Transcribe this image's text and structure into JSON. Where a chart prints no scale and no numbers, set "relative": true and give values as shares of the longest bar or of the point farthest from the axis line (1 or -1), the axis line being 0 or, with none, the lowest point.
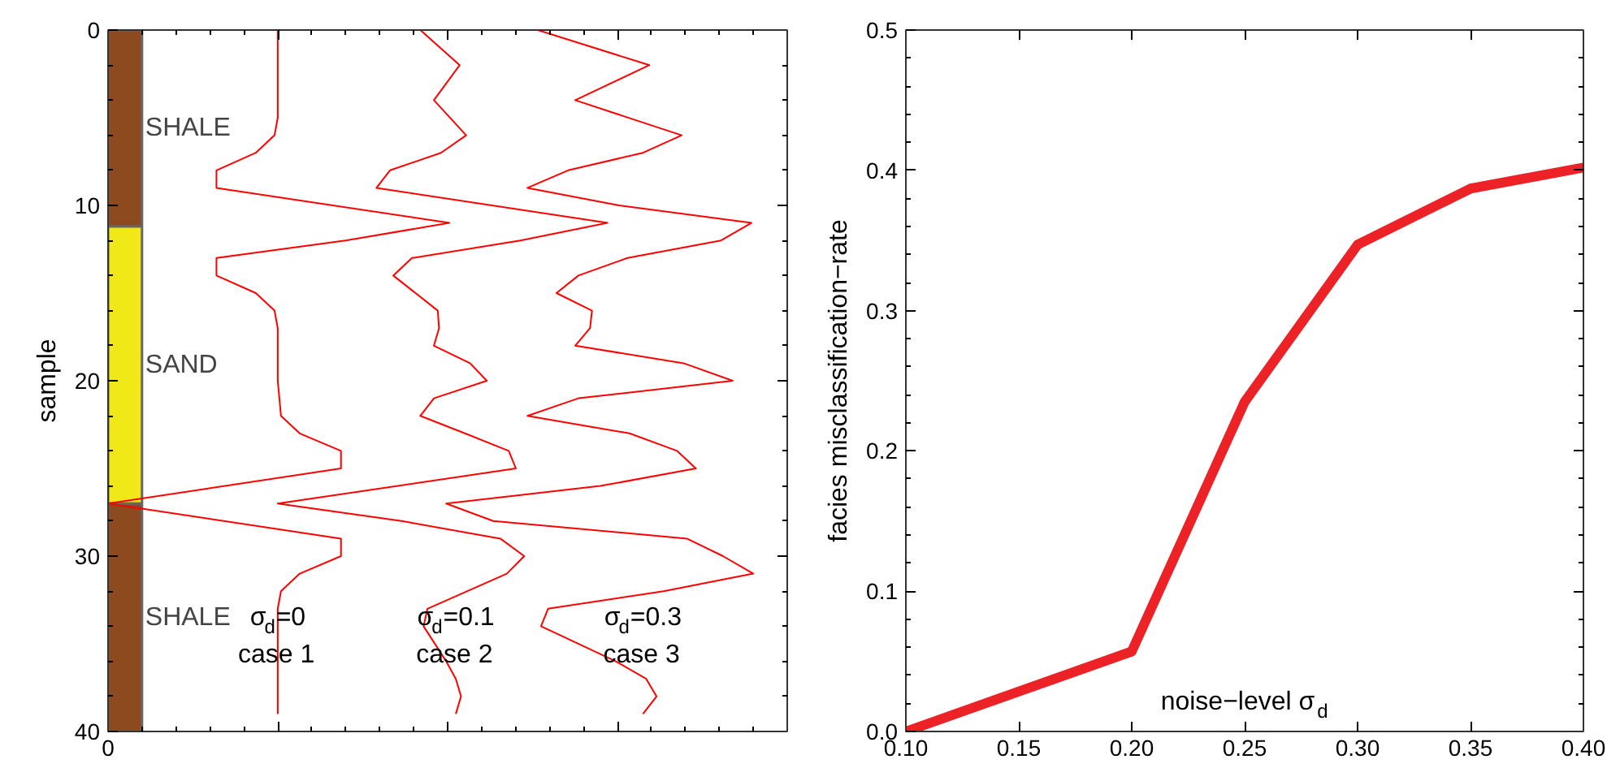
{
  "chart_data": [
    {
      "type": "line",
      "relative": true,
      "orientation": "horizontal",
      "ylabel": "sample",
      "ylim": [
        40,
        0
      ],
      "yticks": [
        0,
        10,
        20,
        30,
        40
      ],
      "grid": false,
      "bands": [
        {
          "axis": "y",
          "from": 0,
          "to": 11.2,
          "label": "SHALE",
          "color": "#8e4a1f"
        },
        {
          "axis": "y",
          "from": 11.2,
          "to": 27,
          "label": "SAND",
          "color": "#f0e817"
        },
        {
          "axis": "y",
          "from": 27,
          "to": 40,
          "label": "SHALE",
          "color": "#8e4a1f"
        }
      ],
      "series": [
        {
          "color": "#ff0000",
          "values": [
            0.263,
            0.263,
            0.258,
            0.229,
            0.168,
            0.168,
            0.529,
            0.368,
            0.168,
            0.168,
            0.229,
            0.258,
            0.263,
            0.263,
            0.268,
            0.297,
            0.361,
            0.361,
            0,
            0.361,
            0.361,
            0.297,
            0.268,
            0.263,
            0.263
          ],
          "x": [
            0,
            5,
            6,
            7,
            8,
            9,
            11,
            12,
            13,
            14,
            15,
            16,
            17,
            20,
            22,
            23,
            24,
            25,
            27,
            29,
            30,
            31,
            32,
            33,
            39
          ]
        },
        {
          "color": "#ff0000",
          "values": [
            0.484,
            0.545,
            0.505,
            0.555,
            0.516,
            0.437,
            0.416,
            0.774,
            0.639,
            0.471,
            0.442,
            0.511,
            0.513,
            0.505,
            0.561,
            0.587,
            0.505,
            0.484,
            0.553,
            0.621,
            0.632,
            0.263,
            0.455,
            0.608,
            0.645,
            0.618,
            0.495,
            0.489,
            0.524,
            0.539,
            0.547,
            0.539
          ],
          "x": [
            0,
            2,
            4,
            6,
            7,
            8,
            9,
            11,
            12,
            13,
            14,
            16,
            17,
            18,
            19,
            20,
            21,
            22,
            23,
            24,
            25,
            27,
            28,
            29,
            30,
            31,
            33,
            34,
            36,
            37,
            38,
            39
          ]
        },
        {
          "color": "#ff0000",
          "values": [
            0.666,
            0.839,
            0.724,
            0.889,
            0.829,
            0.713,
            0.65,
            0.792,
            0.997,
            0.95,
            0.805,
            0.729,
            0.695,
            0.75,
            0.747,
            0.724,
            0.892,
            0.968,
            0.729,
            0.65,
            0.808,
            0.882,
            0.911,
            0.763,
            0.524,
            0.597,
            0.897,
            0.953,
            1.0,
            0.861,
            0.682,
            0.671,
            0.787,
            0.834,
            0.85,
            0.829
          ],
          "x": [
            0,
            2,
            4,
            6,
            7,
            8,
            9,
            10,
            11,
            12,
            13,
            14,
            15,
            16,
            17,
            18,
            19,
            20,
            21,
            22,
            23,
            24,
            25,
            26,
            27,
            28,
            29,
            30,
            31,
            32,
            33,
            34,
            36,
            37,
            38,
            39
          ]
        }
      ],
      "annotations": [
        "0",
        "σ$_{d}$=0\ncase 1",
        "σ$_{d}$=0.1\ncase 2",
        "σ$_{d}$=0.3\ncase 3"
      ]
    },
    {
      "type": "line",
      "xlabel": "noise−level σ$_{d}$",
      "ylabel": "facies misclassification−rate",
      "xlim": [
        0.1,
        0.4
      ],
      "xticks": [
        {
          "value": 0.1,
          "label": "0.10"
        },
        {
          "value": 0.15,
          "label": "0.15"
        },
        {
          "value": 0.2,
          "label": "0.20"
        },
        {
          "value": 0.25,
          "label": "0.25"
        },
        {
          "value": 0.3,
          "label": "0.30"
        },
        {
          "value": 0.35,
          "label": "0.35"
        },
        {
          "value": 0.4,
          "label": "0.40"
        }
      ],
      "ylim": [
        0,
        0.5
      ],
      "yticks": [
        {
          "value": 0,
          "label": "0.0"
        },
        {
          "value": 0.1,
          "label": "0.1"
        },
        {
          "value": 0.2,
          "label": "0.2"
        },
        {
          "value": 0.3,
          "label": "0.3"
        },
        {
          "value": 0.4,
          "label": "0.4"
        },
        {
          "value": 0.5,
          "label": "0.5"
        }
      ],
      "grid": false,
      "x": [
        0.1,
        0.2,
        0.25,
        0.3,
        0.35,
        0.4
      ],
      "series": [
        {
          "color": "#ec2227",
          "values": [
            0.0,
            0.057,
            0.235,
            0.347,
            0.387,
            0.402
          ]
        }
      ]
    }
  ]
}
